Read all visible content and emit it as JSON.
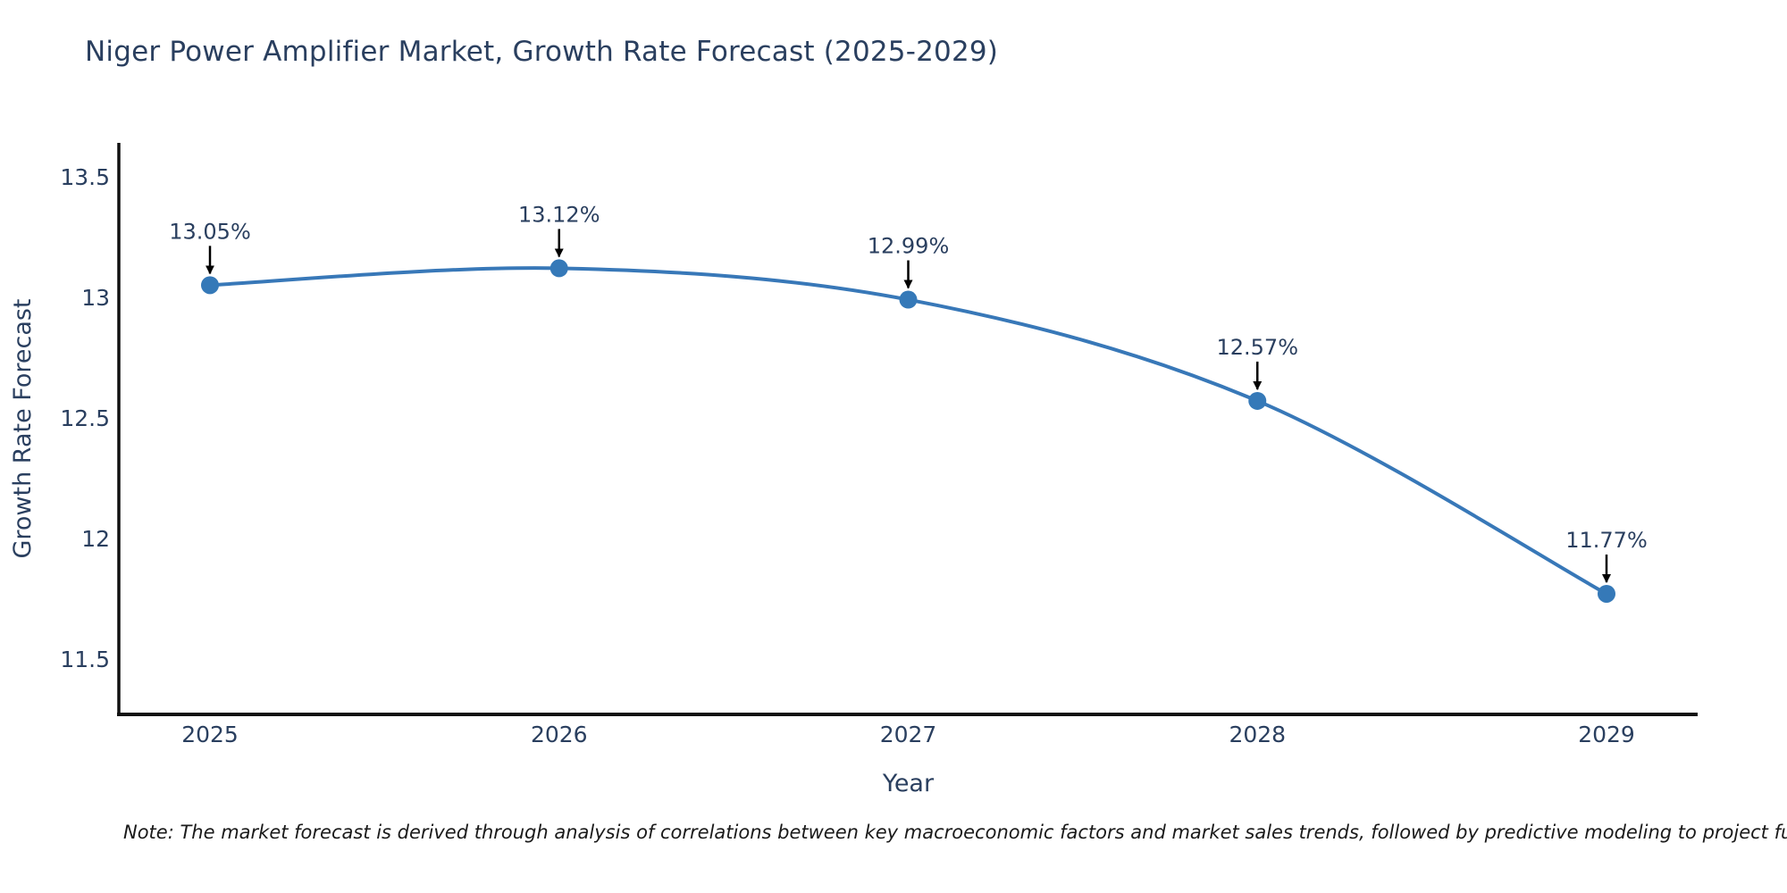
{
  "title": "Niger Power Amplifier Market, Growth Rate Forecast (2025-2029)",
  "note": "Note: The market forecast is derived through analysis of correlations between key macroeconomic factors and market sales trends, followed by predictive modeling to project future sal",
  "chart_data": {
    "type": "line",
    "curve": "spline",
    "x": [
      2025,
      2026,
      2027,
      2028,
      2029
    ],
    "series": [
      {
        "name": "Growth Rate Forecast",
        "values": [
          13.05,
          13.12,
          12.99,
          12.57,
          11.77
        ]
      }
    ],
    "point_labels": [
      "13.05%",
      "13.12%",
      "12.99%",
      "12.57%",
      "11.77%"
    ],
    "title": "Niger Power Amplifier Market, Growth Rate Forecast (2025-2029)",
    "xlabel": "Year",
    "ylabel": "Growth Rate Forecast",
    "yticks": [
      11.5,
      12,
      12.5,
      13,
      13.5
    ],
    "ylim": [
      11.27,
      13.64
    ],
    "grid": false,
    "legend": "none",
    "line_color": "#3878b8",
    "marker_color": "#3579b8",
    "axis_color": "#111111",
    "text_color": "#2a3f5f",
    "annotation_arrow_color": "#000000"
  }
}
